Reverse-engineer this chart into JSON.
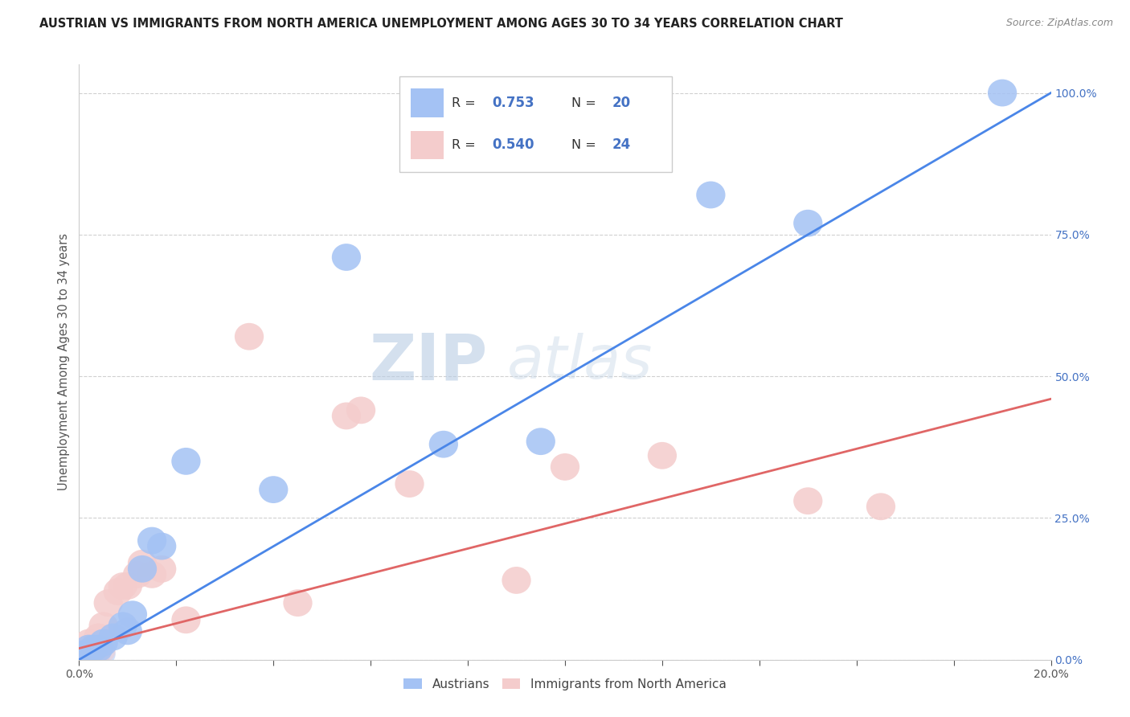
{
  "title": "AUSTRIAN VS IMMIGRANTS FROM NORTH AMERICA UNEMPLOYMENT AMONG AGES 30 TO 34 YEARS CORRELATION CHART",
  "source": "Source: ZipAtlas.com",
  "ylabel": "Unemployment Among Ages 30 to 34 years",
  "xlim": [
    0.0,
    0.2
  ],
  "ylim": [
    0.0,
    1.05
  ],
  "xticks": [
    0.0,
    0.02,
    0.04,
    0.06,
    0.08,
    0.1,
    0.12,
    0.14,
    0.16,
    0.18,
    0.2
  ],
  "yticks": [
    0.0,
    0.25,
    0.5,
    0.75,
    1.0
  ],
  "blue_R": 0.753,
  "blue_N": 20,
  "pink_R": 0.54,
  "pink_N": 24,
  "blue_color": "#a4c2f4",
  "pink_color": "#f4cccc",
  "blue_line_color": "#4a86e8",
  "pink_line_color": "#e06666",
  "watermark_zip": "ZIP",
  "watermark_atlas": "atlas",
  "blue_x": [
    0.001,
    0.002,
    0.003,
    0.004,
    0.005,
    0.007,
    0.009,
    0.01,
    0.011,
    0.013,
    0.015,
    0.017,
    0.022,
    0.04,
    0.055,
    0.075,
    0.095,
    0.13,
    0.15,
    0.19
  ],
  "blue_y": [
    0.01,
    0.02,
    0.02,
    0.02,
    0.03,
    0.04,
    0.06,
    0.05,
    0.08,
    0.16,
    0.21,
    0.2,
    0.35,
    0.3,
    0.71,
    0.38,
    0.385,
    0.82,
    0.77,
    1.0
  ],
  "pink_x": [
    0.001,
    0.002,
    0.003,
    0.004,
    0.005,
    0.006,
    0.008,
    0.009,
    0.01,
    0.012,
    0.013,
    0.015,
    0.017,
    0.022,
    0.035,
    0.045,
    0.055,
    0.058,
    0.068,
    0.09,
    0.1,
    0.12,
    0.15,
    0.165
  ],
  "pink_y": [
    0.01,
    0.03,
    0.02,
    0.04,
    0.06,
    0.1,
    0.12,
    0.13,
    0.13,
    0.15,
    0.17,
    0.15,
    0.16,
    0.07,
    0.57,
    0.1,
    0.43,
    0.44,
    0.31,
    0.14,
    0.34,
    0.36,
    0.28,
    0.27
  ],
  "legend_label_blue": "Austrians",
  "legend_label_pink": "Immigrants from North America",
  "background_color": "#ffffff",
  "grid_color": "#d0d0d0"
}
